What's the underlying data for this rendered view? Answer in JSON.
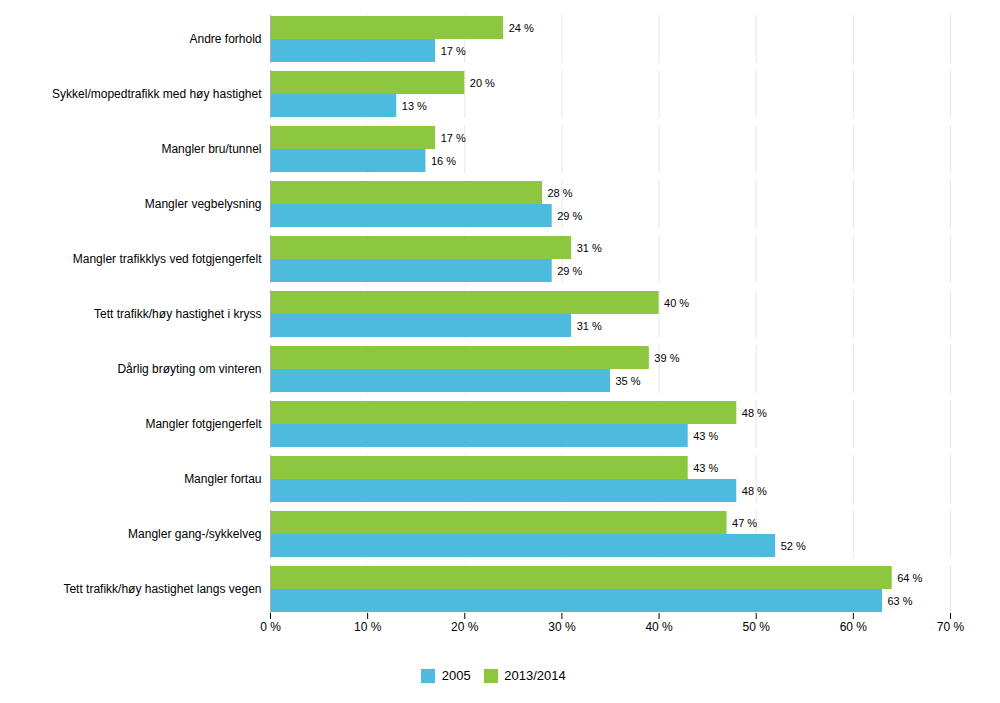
{
  "chart_data": {
    "type": "bar",
    "orientation": "horizontal",
    "categories": [
      "Tett trafikk/høy hastighet langs vegen",
      "Mangler gang-/sykkelveg",
      "Mangler fortau",
      "Mangler fotgjengerfelt",
      "Dårlig brøyting om vinteren",
      "Tett trafikk/høy hastighet i kryss",
      "Mangler trafikklys ved fotgjengerfelt",
      "Mangler vegbelysning",
      "Mangler bru/tunnel",
      "Sykkel/mopedtrafikk med høy hastighet",
      "Andre forhold"
    ],
    "series": [
      {
        "name": "2005",
        "color": "#4DBBDE",
        "values": [
          63,
          52,
          48,
          43,
          35,
          31,
          29,
          29,
          16,
          13,
          17
        ],
        "value_labels": [
          "63 %",
          "52 %",
          "48 %",
          "43 %",
          "35 %",
          "31 %",
          "29 %",
          "29 %",
          "16 %",
          "13 %",
          "17 %"
        ]
      },
      {
        "name": "2013/2014",
        "color": "#8DC63F",
        "values": [
          64,
          47,
          43,
          48,
          39,
          40,
          31,
          28,
          17,
          20,
          24
        ],
        "value_labels": [
          "64 %",
          "47 %",
          "43 %",
          "48 %",
          "39 %",
          "40 %",
          "31 %",
          "28 %",
          "17 %",
          "20 %",
          "24 %"
        ]
      }
    ],
    "xlim": [
      0,
      70
    ],
    "xticks": [
      {
        "value": 0,
        "label": "0 %"
      },
      {
        "value": 10,
        "label": "10 %"
      },
      {
        "value": 20,
        "label": "20 %"
      },
      {
        "value": 30,
        "label": "30 %"
      },
      {
        "value": 40,
        "label": "40 %"
      },
      {
        "value": 50,
        "label": "50 %"
      },
      {
        "value": 60,
        "label": "60 %"
      },
      {
        "value": 70,
        "label": "70 %"
      }
    ],
    "grid": true,
    "legend": "bottom",
    "data_labels": true
  }
}
